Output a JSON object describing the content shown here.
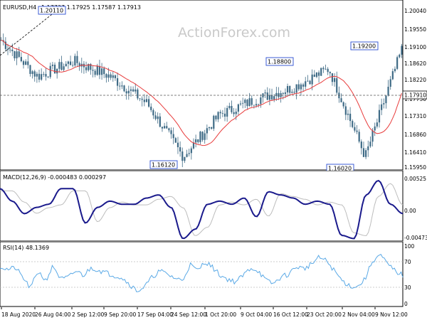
{
  "header": {
    "symbol": "EURUSD,H4",
    "ohlc": "1.17737 1.17925 1.17587 1.17913"
  },
  "watermark": "ActionForex.com",
  "price_panel": {
    "y_ticks": [
      "1.20040",
      "1.19550",
      "1.19100",
      "1.18620",
      "1.18220",
      "1.17730",
      "1.17310",
      "1.16860",
      "1.16410",
      "1.15950"
    ],
    "current_price": "1.17910",
    "callouts": [
      "1.20110",
      "1.16120",
      "1.18800",
      "1.19200",
      "1.16020"
    ]
  },
  "macd_panel": {
    "label": "MACD(12,26,9) -0.000483 0.000297",
    "y_ticks": [
      "0.00525",
      "0.00",
      "-0.004732"
    ]
  },
  "rsi_panel": {
    "label": "RSI(14) 48.1369",
    "y_ticks": [
      "100",
      "70",
      "30",
      "0"
    ]
  },
  "time_axis": [
    "18 Aug 2020",
    "26 Aug 04:00",
    "2 Sep 12:00",
    "9 Sep 20:00",
    "17 Sep 04:00",
    "24 Sep 12:00",
    "1 Oct 20:00",
    "9 Oct 04:00",
    "16 Oct 12:00",
    "23 Oct 20:00",
    "2 Nov 04:00",
    "9 Nov 12:00"
  ],
  "colors": {
    "candles": "#3f6b86",
    "ma_line": "#e83b3b",
    "macd_line": "#1a1a8c",
    "signal_line": "#bdbdbd",
    "rsi_line": "#5aa9e6",
    "callout_border": "#2a4dd1"
  },
  "chart_data": [
    {
      "type": "line",
      "title": "EURUSD,H4",
      "series": [
        {
          "name": "",
          "x": [
            "18 Aug 2020",
            "26 Aug 04:00",
            "2 Sep 12:00",
            "9 Sep 20:00",
            "17 Sep 04:00",
            "24 Sep 12:00",
            "1 Oct 20:00",
            "9 Oct 04:00",
            "16 Oct 12:00",
            "23 Oct 20:00",
            "2 Nov 04:00",
            "9 Nov 12:00"
          ],
          "y": [
            1.1925,
            1.183,
            1.187,
            1.183,
            1.176,
            1.162,
            1.173,
            1.177,
            1.18,
            1.185,
            1.162,
            1.19
          ]
        }
      ],
      "ylim": [
        1.1585,
        1.203
      ],
      "grid": false
    },
    {
      "type": "line",
      "title": "MACD(12,26,9) -0.000483 0.000297",
      "series": [
        {
          "name": "",
          "values": [
            0.0035,
            0.0015,
            -0.0005,
            0.0005,
            0.001,
            0.0035,
            0.0035,
            -0.002,
            0.0005,
            0.0015,
            0.001,
            0.001,
            0.002,
            0.0025,
            0.0005,
            -0.0045,
            -0.003,
            0.001,
            0.0015,
            0.001,
            0.002,
            -0.001,
            0.003,
            0.0025,
            0.002,
            0.001,
            0.0015,
            0.001,
            -0.004,
            -0.0045,
            0.0025,
            0.0048,
            0.001,
            -0.0005
          ]
        }
      ],
      "ylim": [
        -0.004732,
        0.00525
      ]
    },
    {
      "type": "line",
      "title": "RSI(14) 48.1369",
      "series": [
        {
          "name": "",
          "values": [
            62,
            57,
            60,
            45,
            28,
            55,
            40,
            63,
            42,
            45,
            55,
            48,
            60,
            56,
            52,
            48,
            45,
            35,
            24,
            30,
            45,
            55,
            50,
            44,
            40,
            65,
            55,
            70,
            60,
            48,
            42,
            38,
            48,
            60,
            55,
            40,
            35,
            46,
            50,
            62,
            58,
            66,
            76,
            70,
            55,
            40,
            32,
            30,
            42,
            70,
            80,
            65,
            55,
            48
          ]
        }
      ],
      "ylim": [
        0,
        100
      ]
    }
  ]
}
